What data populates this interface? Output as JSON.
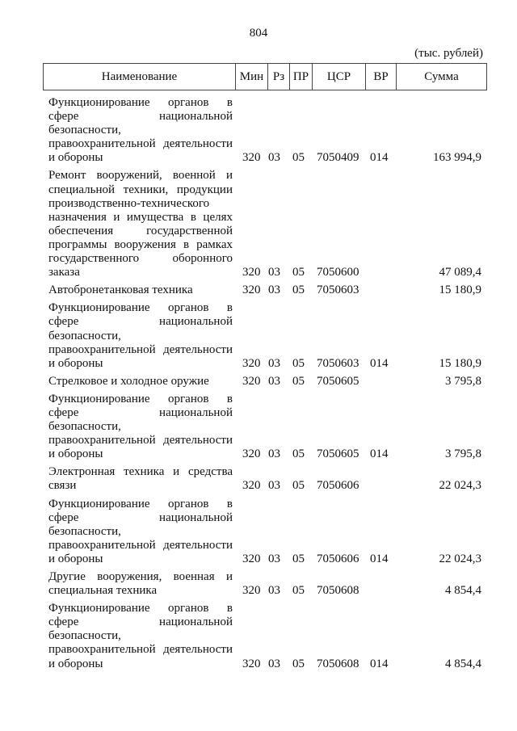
{
  "page_number": "804",
  "unit": "(тыс. рублей)",
  "headers": {
    "name": "Наименование",
    "min": "Мин",
    "rz": "Рз",
    "pr": "ПР",
    "csr": "ЦСР",
    "vr": "ВР",
    "sum": "Сумма"
  },
  "rows": [
    {
      "lines": [
        "Функционирование органов в",
        "сфере национальной",
        "безопасности,",
        "правоохранительной деятельности",
        "и обороны"
      ],
      "min": "320",
      "rz": "03",
      "pr": "05",
      "csr": "7050409",
      "vr": "014",
      "sum": "163 994,9"
    },
    {
      "lines": [
        "Ремонт вооружений, военной и",
        "специальной техники, продукции",
        "производственно-технического",
        "назначения и имущества в целях",
        "обеспечения государственной",
        "программы вооружения в рамках",
        "государственного оборонного",
        "заказа"
      ],
      "min": "320",
      "rz": "03",
      "pr": "05",
      "csr": "7050600",
      "vr": "",
      "sum": "47 089,4"
    },
    {
      "lines": [
        "Автобронетанковая техника"
      ],
      "min": "320",
      "rz": "03",
      "pr": "05",
      "csr": "7050603",
      "vr": "",
      "sum": "15 180,9"
    },
    {
      "lines": [
        "Функционирование органов в",
        "сфере национальной",
        "безопасности,",
        "правоохранительной деятельности",
        "и обороны"
      ],
      "min": "320",
      "rz": "03",
      "pr": "05",
      "csr": "7050603",
      "vr": "014",
      "sum": "15 180,9"
    },
    {
      "lines": [
        "Стрелковое и холодное оружие"
      ],
      "min": "320",
      "rz": "03",
      "pr": "05",
      "csr": "7050605",
      "vr": "",
      "sum": "3 795,8"
    },
    {
      "lines": [
        "Функционирование органов в",
        "сфере национальной",
        "безопасности,",
        "правоохранительной деятельности",
        "и обороны"
      ],
      "min": "320",
      "rz": "03",
      "pr": "05",
      "csr": "7050605",
      "vr": "014",
      "sum": "3 795,8"
    },
    {
      "lines": [
        "Электронная техника и средства",
        "связи"
      ],
      "min": "320",
      "rz": "03",
      "pr": "05",
      "csr": "7050606",
      "vr": "",
      "sum": "22 024,3"
    },
    {
      "lines": [
        "Функционирование органов в",
        "сфере национальной",
        "безопасности,",
        "правоохранительной деятельности",
        "и обороны"
      ],
      "min": "320",
      "rz": "03",
      "pr": "05",
      "csr": "7050606",
      "vr": "014",
      "sum": "22 024,3"
    },
    {
      "lines": [
        "Другие вооружения, военная и",
        "специальная техника"
      ],
      "min": "320",
      "rz": "03",
      "pr": "05",
      "csr": "7050608",
      "vr": "",
      "sum": "4 854,4"
    },
    {
      "lines": [
        "Функционирование органов в",
        "сфере национальной",
        "безопасности,",
        "правоохранительной деятельности",
        "и обороны"
      ],
      "min": "320",
      "rz": "03",
      "pr": "05",
      "csr": "7050608",
      "vr": "014",
      "sum": "4 854,4"
    }
  ]
}
